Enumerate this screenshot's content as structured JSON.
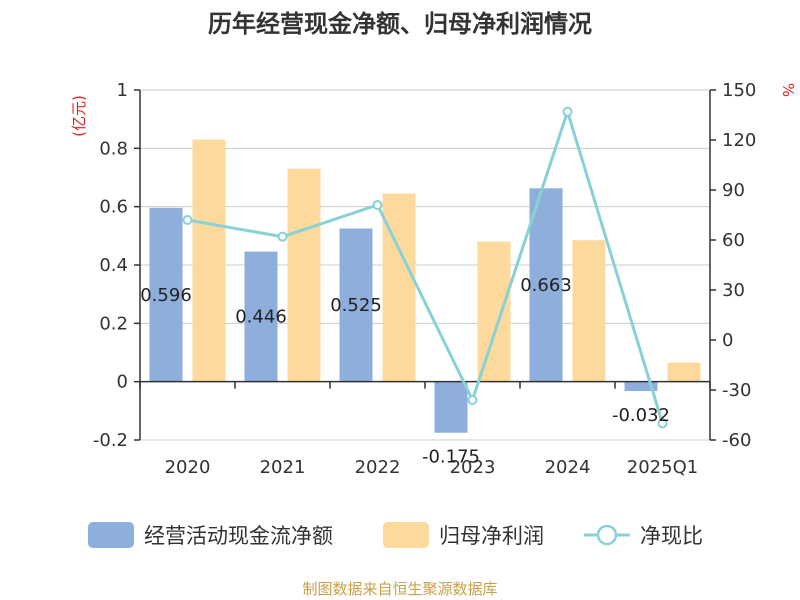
{
  "chart_data": {
    "type": "bar",
    "title": "历年经营现金净额、归母净利润情况",
    "categories": [
      "2020",
      "2021",
      "2022",
      "2023",
      "2024",
      "2025Q1"
    ],
    "left_axis": {
      "unit": "(亿元)",
      "ylim": [
        -0.2,
        1
      ],
      "ticks": [
        "1",
        "0.8",
        "0.6",
        "0.4",
        "0.2",
        "0",
        "-0.2"
      ],
      "tick_values": [
        1,
        0.8,
        0.6,
        0.4,
        0.2,
        0,
        -0.2
      ]
    },
    "right_axis": {
      "unit": "%",
      "ylim": [
        -60,
        150
      ],
      "ticks": [
        "150",
        "120",
        "90",
        "60",
        "30",
        "0",
        "-30",
        "-60"
      ],
      "tick_values": [
        150,
        120,
        90,
        60,
        30,
        0,
        -30,
        -60
      ]
    },
    "series": [
      {
        "name": "经营活动现金流净额",
        "kind": "bar",
        "axis": "left",
        "color": "#8eaedb",
        "values": [
          0.596,
          0.446,
          0.525,
          -0.175,
          0.663,
          -0.032
        ],
        "labels": [
          "0.596",
          "0.446",
          "0.525",
          "-0.175",
          "0.663",
          "-0.032"
        ]
      },
      {
        "name": "归母净利润",
        "kind": "bar",
        "axis": "left",
        "color": "#fdd99b",
        "values": [
          0.83,
          0.73,
          0.645,
          0.48,
          0.485,
          0.065
        ]
      },
      {
        "name": "净现比",
        "kind": "line",
        "axis": "right",
        "color": "#88d1d6",
        "values": [
          72,
          62,
          81,
          -36,
          137,
          -50
        ]
      }
    ],
    "grid": true,
    "legend_position": "bottom"
  },
  "footer": {
    "source": "制图数据来自恒生聚源数据库",
    "source_color": "#c9a04a"
  },
  "colors": {
    "axis_unit_left": "#e02020",
    "axis_unit_right": "#e02020"
  }
}
